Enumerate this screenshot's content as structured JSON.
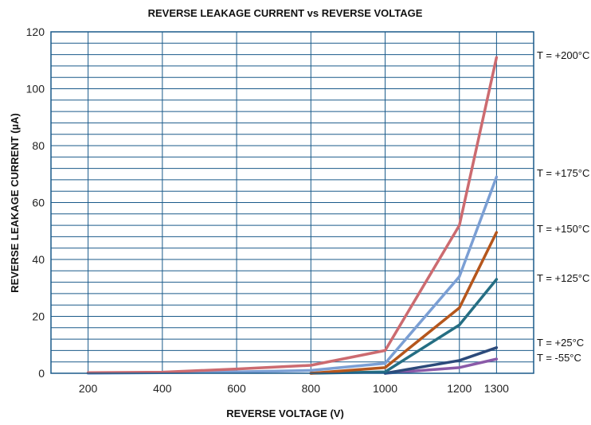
{
  "chart_data": {
    "type": "line",
    "title": "REVERSE LEAKAGE CURRENT vs REVERSE VOLTAGE",
    "xlabel": "REVERSE VOLTAGE (V)",
    "ylabel": "REVERSE LEAKAGE CURRENT (µA)",
    "xlim": [
      100,
      1400
    ],
    "ylim": [
      0,
      120
    ],
    "x_ticks": [
      200,
      400,
      600,
      800,
      1000,
      1200,
      1300
    ],
    "y_ticks": [
      0,
      20,
      40,
      60,
      80,
      100,
      120
    ],
    "grid": true,
    "legend": "right-side labels",
    "series": [
      {
        "name": "T = -55°C",
        "color": "#8a5aa8",
        "x": [
          1000,
          1200,
          1300
        ],
        "y": [
          0,
          2,
          5
        ]
      },
      {
        "name": "T = +25°C",
        "color": "#2c4a7a",
        "x": [
          1000,
          1200,
          1300
        ],
        "y": [
          0,
          4.5,
          9
        ]
      },
      {
        "name": "T = +125°C",
        "color": "#256e83",
        "x": [
          800,
          1000,
          1200,
          1300
        ],
        "y": [
          0,
          0.5,
          17,
          33
        ]
      },
      {
        "name": "T = +150°C",
        "color": "#b5561c",
        "x": [
          800,
          1000,
          1200,
          1300
        ],
        "y": [
          0,
          2,
          23,
          49.5
        ]
      },
      {
        "name": "T = +175°C",
        "color": "#7b9fd4",
        "x": [
          200,
          400,
          600,
          800,
          1000,
          1200,
          1300
        ],
        "y": [
          0,
          0.2,
          0.5,
          1,
          3.5,
          34,
          69
        ]
      },
      {
        "name": "T = +200°C",
        "color": "#cc6b70",
        "x": [
          200,
          400,
          600,
          800,
          1000,
          1200,
          1300
        ],
        "y": [
          0.2,
          0.4,
          1.5,
          2.8,
          8,
          52,
          111
        ]
      }
    ]
  }
}
